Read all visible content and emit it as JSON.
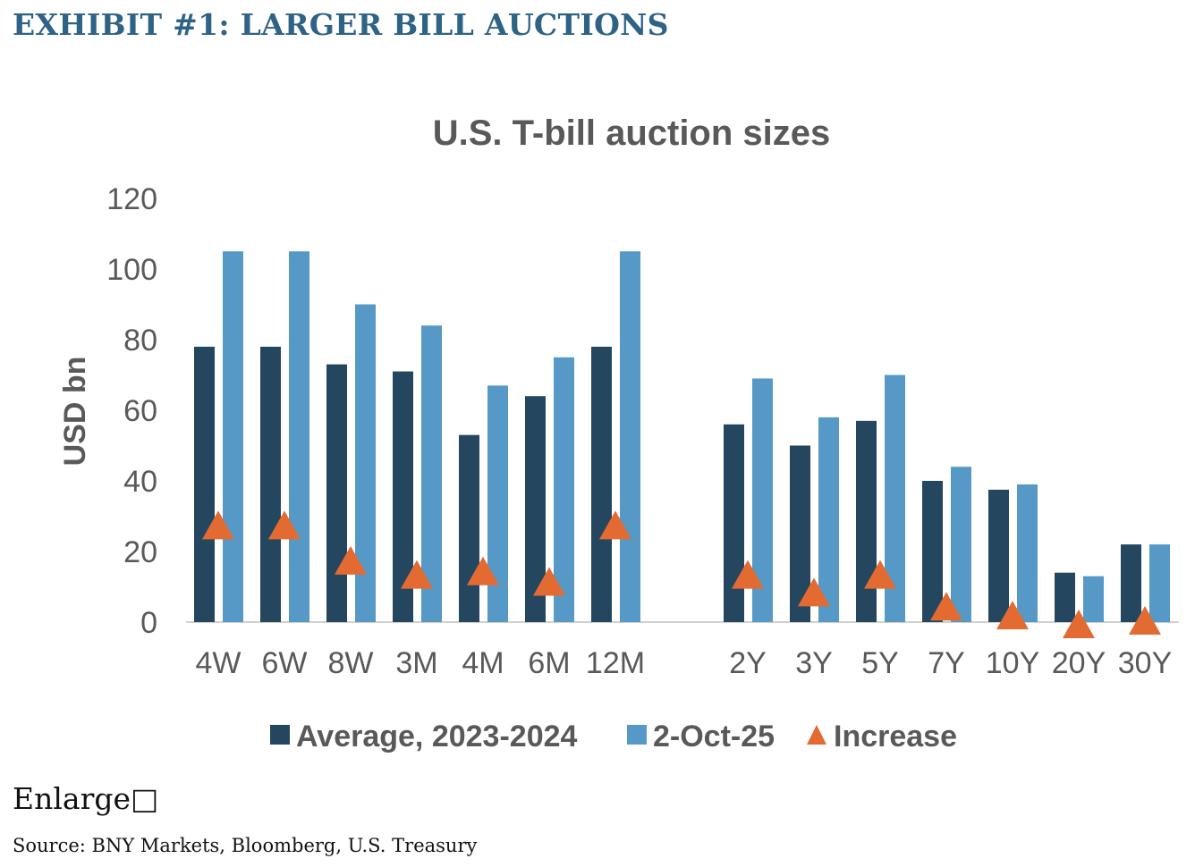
{
  "exhibit_title": "EXHIBIT #1:  LARGER BILL AUCTIONS",
  "enlarge_label": "Enlarge□",
  "source": "Source: BNY Markets, Bloomberg, U.S. Treasury",
  "colors": {
    "title": "#2e6386",
    "average": "#24475f",
    "current": "#5699c6",
    "increase": "#e36b32",
    "text": "#595959"
  },
  "chart_data": {
    "type": "bar",
    "title": "U.S. T-bill auction sizes",
    "xlabel": "",
    "ylabel": "USD bn",
    "ylim": [
      0,
      120
    ],
    "yticks": [
      0,
      20,
      40,
      60,
      80,
      100,
      120
    ],
    "grid": false,
    "legend_position": "bottom",
    "categories": [
      "4W",
      "6W",
      "8W",
      "3M",
      "4M",
      "6M",
      "12M",
      "",
      "2Y",
      "3Y",
      "5Y",
      "7Y",
      "10Y",
      "20Y",
      "30Y"
    ],
    "series": [
      {
        "name": "Average, 2023-2024",
        "kind": "bar",
        "values": [
          78,
          78,
          73,
          71,
          53,
          64,
          78,
          null,
          56,
          50,
          57,
          40,
          37.5,
          14,
          22
        ]
      },
      {
        "name": "2-Oct-25",
        "kind": "bar",
        "values": [
          105,
          105,
          90,
          84,
          67,
          75,
          105,
          null,
          69,
          58,
          70,
          44,
          39,
          13,
          22
        ]
      },
      {
        "name": "Increase",
        "kind": "marker-triangle",
        "values": [
          27,
          27,
          17,
          13,
          14,
          11,
          27,
          null,
          13,
          8,
          13,
          4,
          1.5,
          -1,
          0
        ]
      }
    ]
  }
}
